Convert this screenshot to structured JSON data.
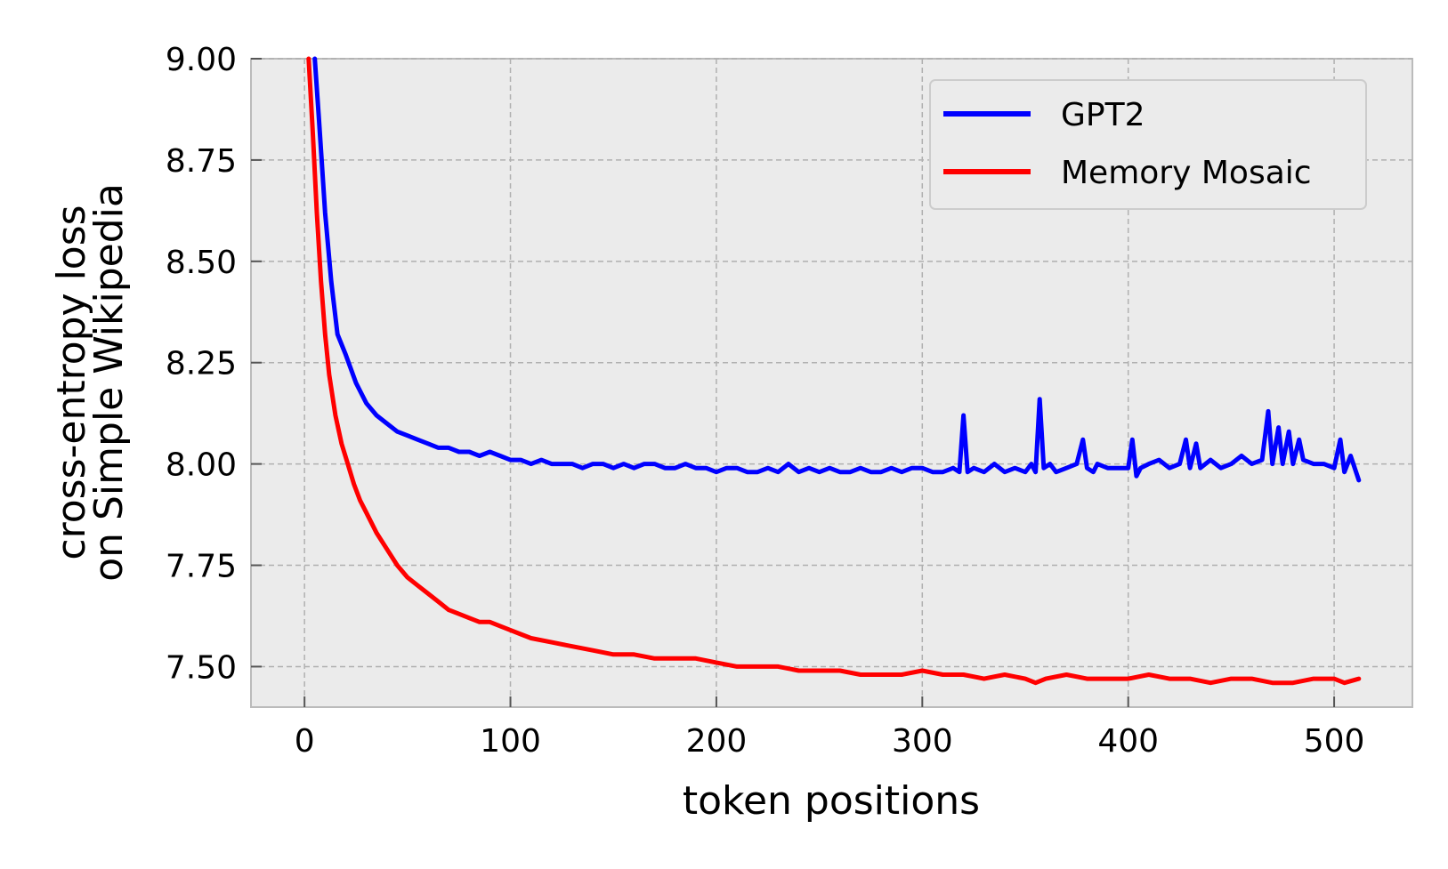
{
  "chart_data": {
    "type": "line",
    "title": "",
    "xlabel": "token positions",
    "ylabel_lines": [
      "cross-entropy loss",
      "on Simple Wikipedia"
    ],
    "xlim": [
      -26,
      538
    ],
    "ylim": [
      7.4,
      9.0
    ],
    "xticks": [
      0,
      100,
      200,
      300,
      400,
      500
    ],
    "xtick_labels": [
      "0",
      "100",
      "200",
      "300",
      "400",
      "500"
    ],
    "yticks": [
      7.5,
      7.75,
      8.0,
      8.25,
      8.5,
      8.75,
      9.0
    ],
    "ytick_labels": [
      "7.50",
      "7.75",
      "8.00",
      "8.25",
      "8.50",
      "8.75",
      "9.00"
    ],
    "grid": true,
    "legend_position": "top-right",
    "series": [
      {
        "name": "GPT2",
        "color": "#0000ff",
        "x": [
          5,
          7,
          10,
          13,
          16,
          20,
          25,
          30,
          35,
          40,
          45,
          50,
          55,
          60,
          65,
          70,
          75,
          80,
          85,
          90,
          95,
          100,
          105,
          110,
          115,
          120,
          125,
          130,
          135,
          140,
          145,
          150,
          155,
          160,
          165,
          170,
          175,
          180,
          185,
          190,
          195,
          200,
          205,
          210,
          215,
          220,
          225,
          230,
          235,
          240,
          245,
          250,
          255,
          260,
          265,
          270,
          275,
          280,
          285,
          290,
          295,
          300,
          305,
          310,
          315,
          318,
          320,
          322,
          325,
          330,
          335,
          340,
          345,
          350,
          353,
          355,
          357,
          359,
          362,
          365,
          370,
          375,
          378,
          380,
          383,
          385,
          390,
          395,
          400,
          402,
          404,
          406,
          410,
          415,
          420,
          425,
          428,
          430,
          433,
          435,
          440,
          445,
          450,
          455,
          460,
          465,
          468,
          470,
          473,
          475,
          478,
          480,
          483,
          485,
          490,
          495,
          500,
          503,
          505,
          508,
          512
        ],
        "y": [
          9.0,
          8.85,
          8.62,
          8.45,
          8.32,
          8.27,
          8.2,
          8.15,
          8.12,
          8.1,
          8.08,
          8.07,
          8.06,
          8.05,
          8.04,
          8.04,
          8.03,
          8.03,
          8.02,
          8.03,
          8.02,
          8.01,
          8.01,
          8.0,
          8.01,
          8.0,
          8.0,
          8.0,
          7.99,
          8.0,
          8.0,
          7.99,
          8.0,
          7.99,
          8.0,
          8.0,
          7.99,
          7.99,
          8.0,
          7.99,
          7.99,
          7.98,
          7.99,
          7.99,
          7.98,
          7.98,
          7.99,
          7.98,
          8.0,
          7.98,
          7.99,
          7.98,
          7.99,
          7.98,
          7.98,
          7.99,
          7.98,
          7.98,
          7.99,
          7.98,
          7.99,
          7.99,
          7.98,
          7.98,
          7.99,
          7.98,
          8.12,
          7.98,
          7.99,
          7.98,
          8.0,
          7.98,
          7.99,
          7.98,
          8.0,
          7.98,
          8.16,
          7.99,
          8.0,
          7.98,
          7.99,
          8.0,
          8.06,
          7.99,
          7.98,
          8.0,
          7.99,
          7.99,
          7.99,
          8.06,
          7.97,
          7.99,
          8.0,
          8.01,
          7.99,
          8.0,
          8.06,
          7.99,
          8.05,
          7.99,
          8.01,
          7.99,
          8.0,
          8.02,
          8.0,
          8.01,
          8.13,
          8.0,
          8.09,
          8.0,
          8.08,
          8.0,
          8.06,
          8.01,
          8.0,
          8.0,
          7.99,
          8.06,
          7.98,
          8.02,
          7.96
        ]
      },
      {
        "name": "Memory Mosaic",
        "color": "#ff0000",
        "x": [
          2,
          4,
          6,
          8,
          10,
          12,
          15,
          18,
          21,
          24,
          27,
          30,
          35,
          40,
          45,
          50,
          55,
          60,
          65,
          70,
          75,
          80,
          85,
          90,
          95,
          100,
          105,
          110,
          120,
          130,
          140,
          150,
          160,
          170,
          180,
          190,
          200,
          210,
          220,
          230,
          240,
          250,
          260,
          270,
          280,
          290,
          300,
          310,
          320,
          330,
          340,
          350,
          355,
          360,
          370,
          380,
          390,
          400,
          410,
          420,
          430,
          440,
          450,
          460,
          470,
          480,
          490,
          500,
          505,
          512
        ],
        "y": [
          9.0,
          8.82,
          8.62,
          8.45,
          8.32,
          8.22,
          8.12,
          8.05,
          8.0,
          7.95,
          7.91,
          7.88,
          7.83,
          7.79,
          7.75,
          7.72,
          7.7,
          7.68,
          7.66,
          7.64,
          7.63,
          7.62,
          7.61,
          7.61,
          7.6,
          7.59,
          7.58,
          7.57,
          7.56,
          7.55,
          7.54,
          7.53,
          7.53,
          7.52,
          7.52,
          7.52,
          7.51,
          7.5,
          7.5,
          7.5,
          7.49,
          7.49,
          7.49,
          7.48,
          7.48,
          7.48,
          7.49,
          7.48,
          7.48,
          7.47,
          7.48,
          7.47,
          7.46,
          7.47,
          7.48,
          7.47,
          7.47,
          7.47,
          7.48,
          7.47,
          7.47,
          7.46,
          7.47,
          7.47,
          7.46,
          7.46,
          7.47,
          7.47,
          7.46,
          7.47
        ]
      }
    ]
  }
}
